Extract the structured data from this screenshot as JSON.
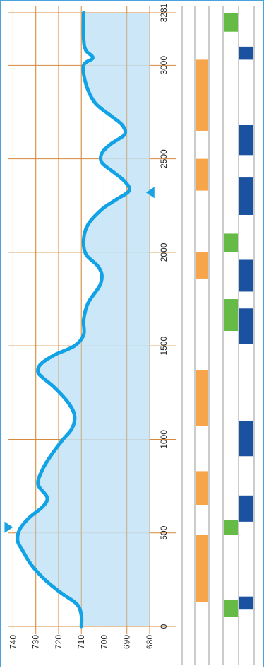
{
  "chart_data": {
    "type": "line",
    "orientation": "rotated",
    "x_axis": {
      "ticks": [
        0,
        500,
        1000,
        1500,
        2000,
        2500,
        3000,
        3281
      ],
      "range": [
        0,
        3281
      ]
    },
    "y_axis": {
      "ticks": [
        740,
        730,
        720,
        710,
        700,
        690,
        680
      ],
      "range": [
        680,
        742
      ]
    },
    "grid": true,
    "series": [
      {
        "values_xy": [
          [
            0,
            710
          ],
          [
            60,
            710
          ],
          [
            120,
            712
          ],
          [
            180,
            719
          ],
          [
            250,
            726
          ],
          [
            330,
            732
          ],
          [
            410,
            736
          ],
          [
            460,
            738
          ],
          [
            520,
            737
          ],
          [
            580,
            733
          ],
          [
            640,
            727
          ],
          [
            690,
            725
          ],
          [
            760,
            729
          ],
          [
            840,
            727
          ],
          [
            920,
            723
          ],
          [
            1000,
            718
          ],
          [
            1060,
            714
          ],
          [
            1130,
            713
          ],
          [
            1200,
            716
          ],
          [
            1280,
            722
          ],
          [
            1330,
            727
          ],
          [
            1360,
            729
          ],
          [
            1400,
            728
          ],
          [
            1450,
            722
          ],
          [
            1500,
            713
          ],
          [
            1560,
            709
          ],
          [
            1640,
            709
          ],
          [
            1730,
            707
          ],
          [
            1820,
            702
          ],
          [
            1880,
            701
          ],
          [
            1930,
            703
          ],
          [
            1990,
            708
          ],
          [
            2070,
            709
          ],
          [
            2150,
            707
          ],
          [
            2230,
            701
          ],
          [
            2280,
            695
          ],
          [
            2330,
            689
          ],
          [
            2380,
            691
          ],
          [
            2430,
            696
          ],
          [
            2480,
            701
          ],
          [
            2530,
            701
          ],
          [
            2580,
            697
          ],
          [
            2630,
            691
          ],
          [
            2680,
            692
          ],
          [
            2730,
            697
          ],
          [
            2800,
            704
          ],
          [
            2900,
            708
          ],
          [
            3000,
            709
          ],
          [
            3040,
            705
          ],
          [
            3080,
            708
          ],
          [
            3140,
            709
          ],
          [
            3281,
            709
          ]
        ]
      }
    ],
    "markers": [
      {
        "x": 530,
        "y": 740,
        "symbol": "triangle"
      },
      {
        "x": 2320,
        "y": 681,
        "symbol": "triangle"
      }
    ],
    "tracks": [
      {
        "color": "#f7a54a",
        "intervals": [
          [
            130,
            490
          ],
          [
            650,
            830
          ],
          [
            1070,
            1370
          ],
          [
            1860,
            2000
          ],
          [
            2330,
            2500
          ],
          [
            2650,
            3030
          ]
        ]
      },
      {
        "color": "#66bb47",
        "intervals": [
          [
            50,
            140
          ],
          [
            490,
            570
          ],
          [
            1580,
            1750
          ],
          [
            2000,
            2100
          ],
          [
            3180,
            3281
          ]
        ]
      },
      {
        "color": "#1a52a0",
        "intervals": [
          [
            90,
            160
          ],
          [
            560,
            700
          ],
          [
            910,
            1100
          ],
          [
            1510,
            1700
          ],
          [
            1790,
            1960
          ],
          [
            2200,
            2400
          ],
          [
            2520,
            2680
          ],
          [
            3030,
            3100
          ]
        ]
      }
    ]
  }
}
